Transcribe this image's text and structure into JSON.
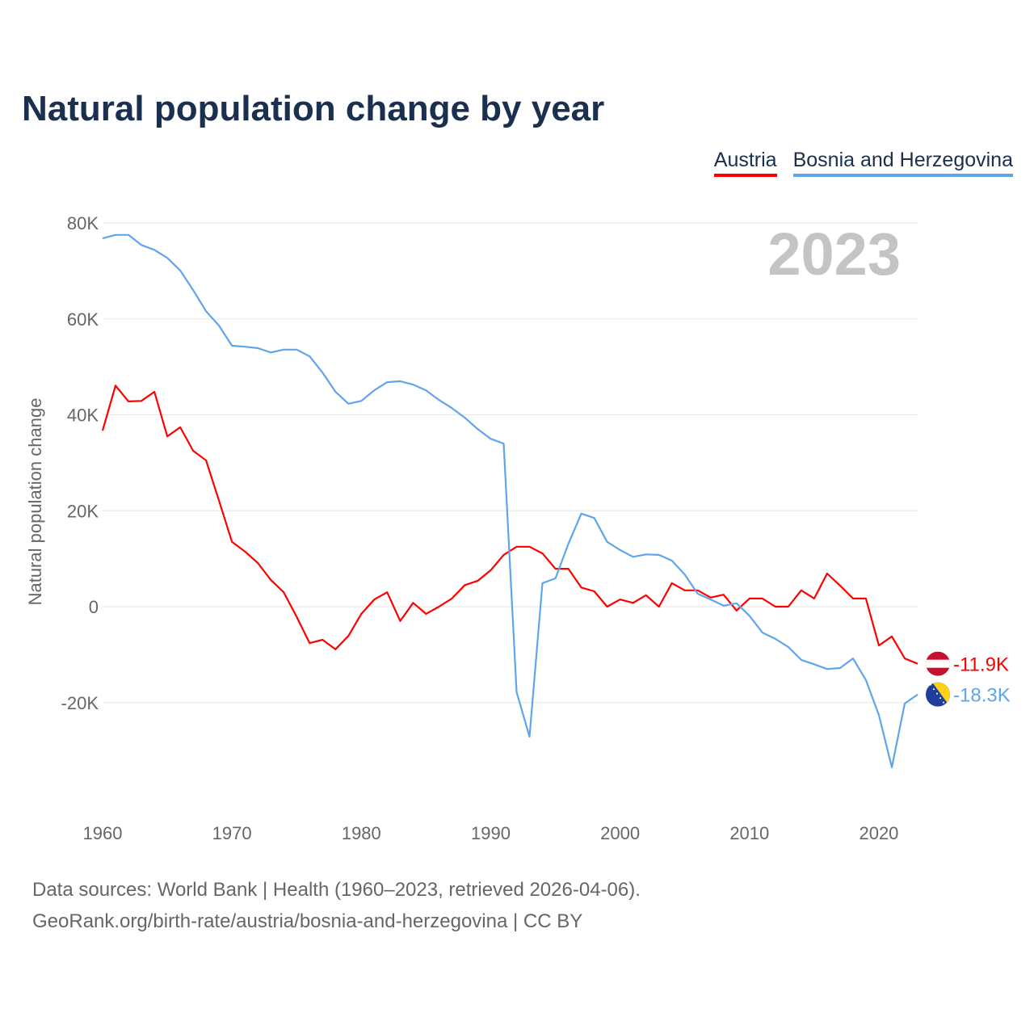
{
  "chart_data": {
    "type": "line",
    "title": "Natural population change by year",
    "ylabel": "Natural population change",
    "xlabel": "",
    "year_watermark": "2023",
    "ylim": [
      -40000,
      80000
    ],
    "xlim": [
      1960,
      2023
    ],
    "y_ticks": [
      {
        "v": 80000,
        "label": "80K"
      },
      {
        "v": 60000,
        "label": "60K"
      },
      {
        "v": 40000,
        "label": "40K"
      },
      {
        "v": 20000,
        "label": "20K"
      },
      {
        "v": 0,
        "label": "0"
      },
      {
        "v": -20000,
        "label": "-20K"
      }
    ],
    "x_ticks": [
      1960,
      1970,
      1980,
      1990,
      2000,
      2010,
      2020
    ],
    "grid": true,
    "legend_position": "top-right",
    "x": [
      1960,
      1961,
      1962,
      1963,
      1964,
      1965,
      1966,
      1967,
      1968,
      1969,
      1970,
      1971,
      1972,
      1973,
      1974,
      1975,
      1976,
      1977,
      1978,
      1979,
      1980,
      1981,
      1982,
      1983,
      1984,
      1985,
      1986,
      1987,
      1988,
      1989,
      1990,
      1991,
      1992,
      1993,
      1994,
      1995,
      1996,
      1997,
      1998,
      1999,
      2000,
      2001,
      2002,
      2003,
      2004,
      2005,
      2006,
      2007,
      2008,
      2009,
      2010,
      2011,
      2012,
      2013,
      2014,
      2015,
      2016,
      2017,
      2018,
      2019,
      2020,
      2021,
      2022,
      2023
    ],
    "series": [
      {
        "name": "Austria",
        "color": "#ff0000",
        "end_label": "-11.9K",
        "values": [
          36700,
          46100,
          42800,
          42900,
          44800,
          35500,
          37400,
          32500,
          30500,
          22100,
          13500,
          11500,
          9100,
          5600,
          3000,
          -2100,
          -7600,
          -6900,
          -8900,
          -6100,
          -1500,
          1500,
          3000,
          -3000,
          800,
          -1500,
          0,
          1700,
          4500,
          5400,
          7600,
          10800,
          12500,
          12500,
          11100,
          7900,
          7900,
          4000,
          3200,
          0,
          1500,
          800,
          2400,
          0,
          4900,
          3400,
          3400,
          1900,
          2500,
          -800,
          1700,
          1700,
          0,
          0,
          3400,
          1700,
          6900,
          4400,
          1700,
          1700,
          -8100,
          -6200,
          -10800,
          -11900
        ]
      },
      {
        "name": "Bosnia and Herzegovina",
        "color": "#5fa5ec",
        "end_label": "-18.3K",
        "values": [
          76800,
          77500,
          77500,
          75400,
          74400,
          72700,
          70100,
          66000,
          61600,
          58600,
          54400,
          54200,
          53900,
          53000,
          53600,
          53600,
          52200,
          48800,
          44800,
          42300,
          42900,
          45100,
          46800,
          47000,
          46300,
          45100,
          43100,
          41400,
          39400,
          37000,
          35000,
          34000,
          -17800,
          -27100,
          4900,
          5900,
          13100,
          19400,
          18500,
          13500,
          11800,
          10400,
          10900,
          10800,
          9600,
          6700,
          2700,
          1500,
          200,
          700,
          -1900,
          -5400,
          -6700,
          -8400,
          -11100,
          -12000,
          -13000,
          -12800,
          -10800,
          -15300,
          -22600,
          -33500,
          -20200,
          -18300
        ]
      }
    ]
  },
  "footer": {
    "line1": "Data sources: World Bank | Health (1960–2023, retrieved 2026-04-06).",
    "line2": "GeoRank.org/birth-rate/austria/bosnia-and-herzegovina | CC BY"
  }
}
